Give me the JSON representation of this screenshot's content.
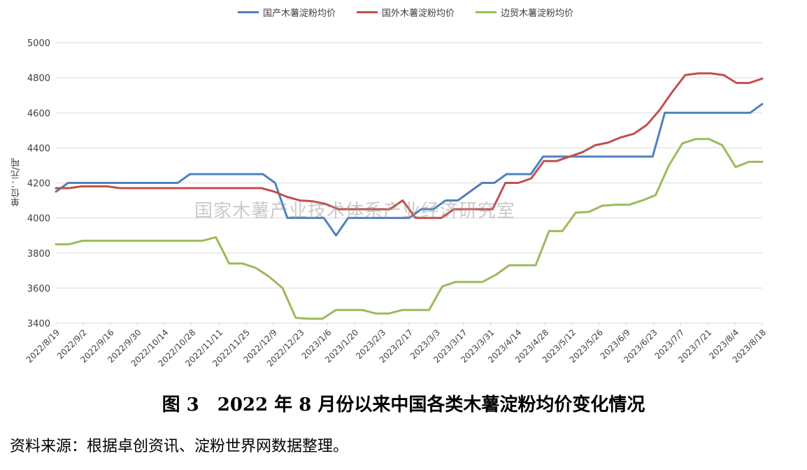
{
  "legend": {
    "domestic": "国产木薯淀粉均价",
    "foreign": "国外木薯淀粉均价",
    "border": "边贸木薯淀粉均价"
  },
  "ylabel": "单位：元/吨",
  "watermark": "国家木薯产业技术体系产业经济研究室",
  "caption": "图 3　2022 年 8 月份以来中国各类木薯淀粉均价变化情况",
  "source": "资料来源：根据卓创资讯、淀粉世界网数据整理。",
  "colors": {
    "domestic": "#4f81bd",
    "foreign": "#c0504d",
    "border": "#9bbb59",
    "grid": "#d9d9d9"
  },
  "chart_data": {
    "type": "line",
    "ylim": [
      3400,
      5000
    ],
    "yticks": [
      3400,
      3600,
      3800,
      4000,
      4200,
      4400,
      4600,
      4800,
      5000
    ],
    "x_labels": [
      "2022/8/19",
      "2022/9/2",
      "2022/9/16",
      "2022/9/30",
      "2022/10/14",
      "2022/10/28",
      "2022/11/11",
      "2022/11/25",
      "2022/12/9",
      "2022/12/23",
      "2023/1/6",
      "2023/1/20",
      "2023/2/3",
      "2023/2/17",
      "2023/3/3",
      "2023/3/17",
      "2023/3/31",
      "2023/4/14",
      "2023/4/28",
      "2023/5/12",
      "2023/5/26",
      "2023/6/9",
      "2023/6/23",
      "2023/7/7",
      "2023/7/21",
      "2023/8/4",
      "2023/8/18"
    ],
    "series": [
      {
        "name": "国产木薯淀粉均价",
        "key": "domestic",
        "values": [
          4150,
          4200,
          4200,
          4200,
          4200,
          4200,
          4200,
          4200,
          4200,
          4200,
          4200,
          4250,
          4250,
          4250,
          4250,
          4250,
          4250,
          4250,
          4200,
          4000,
          4000,
          4000,
          4000,
          3900,
          4000,
          4000,
          4000,
          4000,
          4000,
          4000,
          4050,
          4050,
          4100,
          4100,
          4150,
          4200,
          4200,
          4250,
          4250,
          4250,
          4350,
          4350,
          4350,
          4350,
          4350,
          4350,
          4350,
          4350,
          4350,
          4350,
          4600,
          4600,
          4600,
          4600,
          4600,
          4600,
          4600,
          4600,
          4650
        ]
      },
      {
        "name": "国外木薯淀粉均价",
        "key": "foreign",
        "values": [
          4170,
          4170,
          4180,
          4180,
          4180,
          4170,
          4170,
          4170,
          4170,
          4170,
          4170,
          4170,
          4170,
          4170,
          4170,
          4170,
          4170,
          4150,
          4120,
          4100,
          4095,
          4080,
          4050,
          4050,
          4050,
          4050,
          4050,
          4100,
          4000,
          4000,
          4000,
          4050,
          4050,
          4050,
          4050,
          4200,
          4200,
          4225,
          4325,
          4325,
          4350,
          4375,
          4415,
          4430,
          4460,
          4480,
          4530,
          4615,
          4720,
          4815,
          4825,
          4825,
          4815,
          4770,
          4770,
          4795
        ]
      },
      {
        "name": "边贸木薯淀粉均价",
        "key": "border",
        "values": [
          3850,
          3850,
          3870,
          3870,
          3870,
          3870,
          3870,
          3870,
          3870,
          3870,
          3870,
          3870,
          3890,
          3740,
          3740,
          3715,
          3665,
          3600,
          3430,
          3425,
          3425,
          3475,
          3475,
          3475,
          3455,
          3455,
          3475,
          3475,
          3475,
          3610,
          3635,
          3635,
          3635,
          3675,
          3730,
          3730,
          3730,
          3925,
          3925,
          4030,
          4035,
          4070,
          4075,
          4075,
          4100,
          4130,
          4300,
          4425,
          4450,
          4450,
          4415,
          4290,
          4320,
          4320
        ]
      }
    ]
  }
}
